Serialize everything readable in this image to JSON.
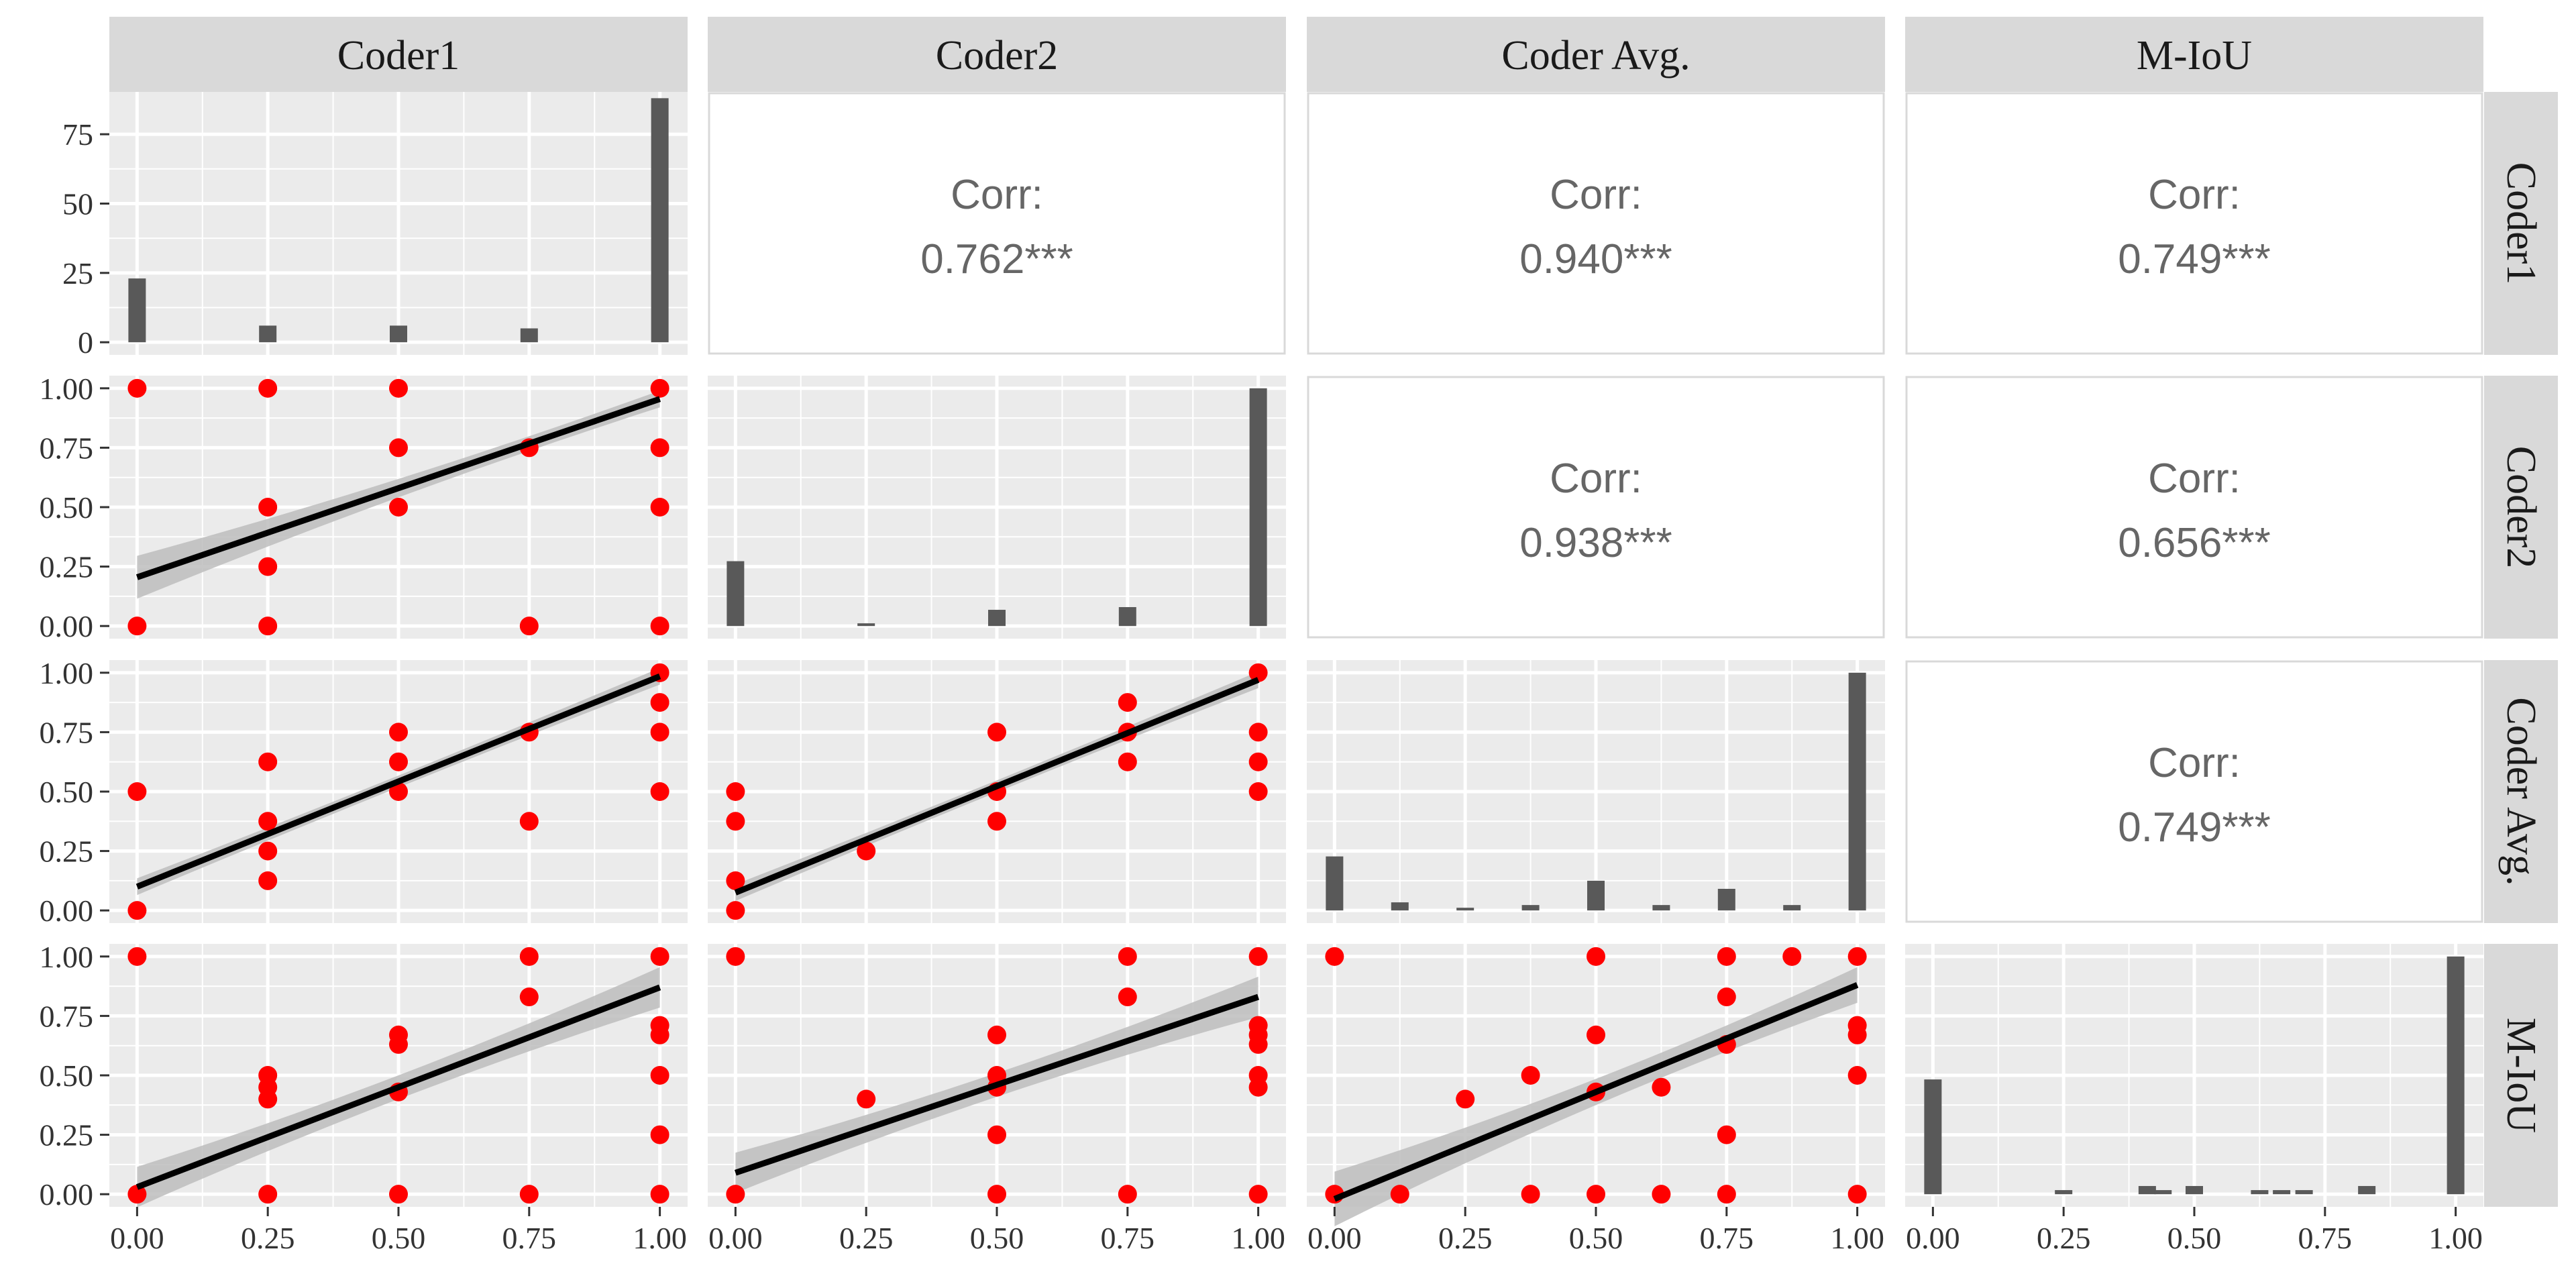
{
  "variables": [
    "Coder1",
    "Coder2",
    "Coder Avg.",
    "M-IoU"
  ],
  "colors": {
    "panel_bg": "#ebebeb",
    "grid": "#ffffff",
    "strip_bg": "#d9d9d9",
    "point": "#ff0000",
    "bar": "#595959",
    "line": "#000000",
    "ribbon": "#bdbdbd",
    "corr_text": "#666666"
  },
  "chart_data": {
    "type": "scatter",
    "layout": "pairs-matrix",
    "x_ticks": [
      "0.00",
      "0.25",
      "0.50",
      "0.75",
      "1.00"
    ],
    "y_ticks": [
      "0.00",
      "0.25",
      "0.50",
      "0.75",
      "1.00"
    ],
    "hist_y_ticks": [
      "0",
      "25",
      "50",
      "75"
    ],
    "hist_ylim": [
      0,
      90
    ],
    "xlim": [
      0,
      1
    ],
    "ylim": [
      0,
      1
    ],
    "correlations": [
      {
        "row": "Coder1",
        "col": "Coder2",
        "label": "Corr:",
        "value": "0.762***"
      },
      {
        "row": "Coder1",
        "col": "Coder Avg.",
        "label": "Corr:",
        "value": "0.940***"
      },
      {
        "row": "Coder1",
        "col": "M-IoU",
        "label": "Corr:",
        "value": "0.749***"
      },
      {
        "row": "Coder2",
        "col": "Coder Avg.",
        "label": "Corr:",
        "value": "0.938***"
      },
      {
        "row": "Coder2",
        "col": "M-IoU",
        "label": "Corr:",
        "value": "0.656***"
      },
      {
        "row": "Coder Avg.",
        "col": "M-IoU",
        "label": "Corr:",
        "value": "0.749***"
      }
    ],
    "histograms": {
      "Coder1": [
        [
          0.0,
          23
        ],
        [
          0.25,
          6
        ],
        [
          0.5,
          6
        ],
        [
          0.75,
          5
        ],
        [
          1.0,
          88
        ]
      ],
      "Coder2": [
        [
          0.0,
          24
        ],
        [
          0.25,
          1
        ],
        [
          0.5,
          6
        ],
        [
          0.75,
          7
        ],
        [
          1.0,
          88
        ]
      ],
      "Coder Avg.": [
        [
          0.0,
          20
        ],
        [
          0.125,
          3
        ],
        [
          0.25,
          1
        ],
        [
          0.375,
          2
        ],
        [
          0.5,
          11
        ],
        [
          0.625,
          2
        ],
        [
          0.75,
          8
        ],
        [
          0.875,
          2
        ],
        [
          1.0,
          88
        ]
      ],
      "M-IoU": [
        [
          0.0,
          28
        ],
        [
          0.25,
          1
        ],
        [
          0.41,
          2
        ],
        [
          0.44,
          1
        ],
        [
          0.5,
          2
        ],
        [
          0.625,
          1
        ],
        [
          0.667,
          1
        ],
        [
          0.71,
          1
        ],
        [
          0.83,
          2
        ],
        [
          1.0,
          58
        ]
      ]
    },
    "scatter": {
      "Coder2|Coder1": {
        "points": [
          [
            0,
            1
          ],
          [
            0.25,
            1
          ],
          [
            0.5,
            1
          ],
          [
            1,
            1
          ],
          [
            0.5,
            0.75
          ],
          [
            0.75,
            0.75
          ],
          [
            1,
            0.75
          ],
          [
            0.25,
            0.5
          ],
          [
            0.5,
            0.5
          ],
          [
            1,
            0.5
          ],
          [
            0.25,
            0.25
          ],
          [
            0,
            0
          ],
          [
            0.25,
            0
          ],
          [
            0.75,
            0
          ],
          [
            1,
            0
          ]
        ],
        "fit": [
          0.205,
          0.955
        ],
        "band": [
          0.075,
          0.02
        ]
      },
      "Coder Avg.|Coder1": {
        "points": [
          [
            0,
            0.5
          ],
          [
            0,
            0
          ],
          [
            0.25,
            0.625
          ],
          [
            0.25,
            0.375
          ],
          [
            0.25,
            0.25
          ],
          [
            0.25,
            0.125
          ],
          [
            0.5,
            0.75
          ],
          [
            0.5,
            0.625
          ],
          [
            0.5,
            0.5
          ],
          [
            0.75,
            0.75
          ],
          [
            0.75,
            0.375
          ],
          [
            1,
            1
          ],
          [
            1,
            0.875
          ],
          [
            1,
            0.75
          ],
          [
            1,
            0.5
          ]
        ],
        "fit": [
          0.1,
          0.985
        ],
        "band": [
          0.02,
          0.02
        ]
      },
      "Coder Avg.|Coder2": {
        "points": [
          [
            0,
            0.5
          ],
          [
            0,
            0.375
          ],
          [
            0,
            0.125
          ],
          [
            0,
            0
          ],
          [
            0.25,
            0.25
          ],
          [
            0.5,
            0.75
          ],
          [
            0.5,
            0.5
          ],
          [
            0.5,
            0.375
          ],
          [
            0.75,
            0.875
          ],
          [
            0.75,
            0.75
          ],
          [
            0.75,
            0.625
          ],
          [
            1,
            1
          ],
          [
            1,
            0.75
          ],
          [
            1,
            0.625
          ],
          [
            1,
            0.5
          ]
        ],
        "fit": [
          0.075,
          0.97
        ],
        "band": [
          0.02,
          0.02
        ]
      },
      "M-IoU|Coder1": {
        "points": [
          [
            0,
            1
          ],
          [
            0,
            0
          ],
          [
            0.25,
            0.5
          ],
          [
            0.25,
            0.45
          ],
          [
            0.25,
            0.4
          ],
          [
            0.25,
            0
          ],
          [
            0.5,
            0.67
          ],
          [
            0.5,
            0.63
          ],
          [
            0.5,
            0.43
          ],
          [
            0.5,
            0
          ],
          [
            0.75,
            1
          ],
          [
            0.75,
            0.83
          ],
          [
            0.75,
            0
          ],
          [
            1,
            1
          ],
          [
            1,
            0.71
          ],
          [
            1,
            0.67
          ],
          [
            1,
            0.5
          ],
          [
            1,
            0.25
          ],
          [
            1,
            0
          ]
        ],
        "fit": [
          0.03,
          0.87
        ],
        "band": [
          0.07,
          0.07
        ]
      },
      "M-IoU|Coder2": {
        "points": [
          [
            0,
            1
          ],
          [
            0,
            0
          ],
          [
            0.25,
            0.4
          ],
          [
            0.5,
            0.67
          ],
          [
            0.5,
            0.5
          ],
          [
            0.5,
            0.45
          ],
          [
            0.5,
            0.25
          ],
          [
            0.5,
            0
          ],
          [
            0.75,
            1
          ],
          [
            0.75,
            0.83
          ],
          [
            0.75,
            0
          ],
          [
            1,
            1
          ],
          [
            1,
            0.71
          ],
          [
            1,
            0.67
          ],
          [
            1,
            0.63
          ],
          [
            1,
            0.5
          ],
          [
            1,
            0.45
          ],
          [
            1,
            0
          ]
        ],
        "fit": [
          0.09,
          0.83
        ],
        "band": [
          0.07,
          0.07
        ]
      },
      "M-IoU|Coder Avg.": {
        "points": [
          [
            0,
            1
          ],
          [
            0,
            0
          ],
          [
            0.125,
            0
          ],
          [
            0.25,
            0.4
          ],
          [
            0.375,
            0.5
          ],
          [
            0.375,
            0
          ],
          [
            0.5,
            1
          ],
          [
            0.5,
            0.67
          ],
          [
            0.5,
            0.43
          ],
          [
            0.5,
            0
          ],
          [
            0.625,
            0.45
          ],
          [
            0.625,
            0
          ],
          [
            0.75,
            1
          ],
          [
            0.75,
            0.83
          ],
          [
            0.75,
            0.63
          ],
          [
            0.75,
            0.25
          ],
          [
            0.75,
            0
          ],
          [
            0.875,
            1
          ],
          [
            1,
            1
          ],
          [
            1,
            0.71
          ],
          [
            1,
            0.67
          ],
          [
            1,
            0.5
          ],
          [
            1,
            0
          ]
        ],
        "fit": [
          -0.02,
          0.88
        ],
        "band": [
          0.1,
          0.06
        ]
      }
    }
  }
}
